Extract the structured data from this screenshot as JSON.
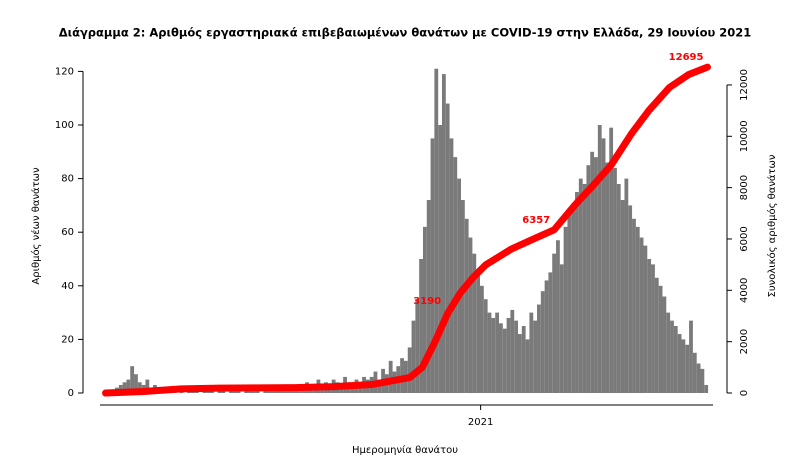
{
  "chart_data": {
    "type": "bar",
    "title": "Διάγραμμα 2: Αριθμός εργαστηριακά επιβεβαιωμένων θανάτων με COVID-19 στην Ελλάδα, 29 Ιουνίου 2021",
    "x_label": "Ημερομηνία θανάτου",
    "y_label": "Αριθμός νέων θανάτων",
    "y2_label": "Συνολικός αριθμός θανάτων",
    "xlim": [
      -2,
      477
    ],
    "xticks": [
      {
        "value": 296,
        "label": "2021"
      }
    ],
    "ylim": [
      0,
      125
    ],
    "yticks": [
      0,
      20,
      40,
      60,
      80,
      100,
      120
    ],
    "y2lim": [
      0,
      13050
    ],
    "y2ticks": [
      0,
      2000,
      4000,
      6000,
      8000,
      10000,
      12000
    ],
    "series": [
      {
        "type": "bar",
        "color": "#7a7a7a",
        "x": [
          0,
          3,
          6,
          9,
          12,
          15,
          18,
          21,
          24,
          27,
          30,
          33,
          36,
          39,
          42,
          45,
          48,
          51,
          54,
          57,
          60,
          63,
          66,
          69,
          72,
          75,
          78,
          81,
          84,
          87,
          90,
          93,
          96,
          99,
          102,
          105,
          108,
          111,
          114,
          117,
          120,
          123,
          126,
          129,
          132,
          135,
          138,
          141,
          144,
          147,
          150,
          153,
          156,
          159,
          162,
          165,
          168,
          171,
          174,
          177,
          180,
          183,
          186,
          189,
          192,
          195,
          198,
          201,
          204,
          207,
          210,
          213,
          216,
          219,
          222,
          225,
          228,
          231,
          234,
          237,
          240,
          243,
          246,
          249,
          252,
          255,
          258,
          261,
          264,
          267,
          270,
          273,
          276,
          279,
          282,
          285,
          288,
          291,
          294,
          297,
          300,
          303,
          306,
          309,
          312,
          315,
          318,
          321,
          324,
          327,
          330,
          333,
          336,
          339,
          342,
          345,
          348,
          351,
          354,
          357,
          360,
          363,
          366,
          369,
          372,
          375,
          378,
          381,
          384,
          387,
          390,
          393,
          396,
          399,
          402,
          405,
          408,
          411,
          414,
          417,
          420,
          423,
          426,
          429,
          432,
          435,
          438,
          441,
          444,
          447,
          450,
          453,
          456,
          459,
          462,
          465,
          468,
          471,
          474
        ],
        "values": [
          0,
          1,
          1,
          2,
          3,
          4,
          5,
          10,
          7,
          4,
          3,
          5,
          2,
          3,
          2,
          1,
          2,
          1,
          1,
          0,
          1,
          0,
          1,
          2,
          1,
          0,
          1,
          2,
          1,
          0,
          1,
          1,
          0,
          2,
          1,
          1,
          0,
          1,
          2,
          1,
          1,
          0,
          1,
          2,
          1,
          1,
          2,
          1,
          1,
          2,
          2,
          3,
          2,
          4,
          3,
          2,
          5,
          3,
          4,
          2,
          5,
          4,
          3,
          6,
          4,
          3,
          5,
          4,
          6,
          5,
          6,
          8,
          5,
          9,
          7,
          12,
          8,
          10,
          13,
          12,
          17,
          27,
          35,
          50,
          62,
          72,
          95,
          121,
          100,
          119,
          108,
          95,
          88,
          80,
          72,
          65,
          58,
          52,
          45,
          40,
          35,
          30,
          28,
          30,
          26,
          24,
          28,
          31,
          27,
          22,
          25,
          20,
          30,
          27,
          33,
          38,
          42,
          45,
          52,
          57,
          48,
          62,
          67,
          70,
          75,
          80,
          78,
          85,
          90,
          88,
          100,
          95,
          86,
          99,
          84,
          78,
          72,
          80,
          70,
          65,
          62,
          58,
          55,
          50,
          48,
          43,
          40,
          36,
          30,
          27,
          25,
          22,
          20,
          18,
          27,
          15,
          11,
          9,
          3
        ]
      },
      {
        "type": "line",
        "axis": "y2",
        "color": "#ff0000",
        "x": [
          0,
          30,
          60,
          90,
          120,
          150,
          180,
          210,
          240,
          250,
          260,
          270,
          280,
          290,
          300,
          320,
          340,
          354,
          370,
          385,
          399,
          415,
          429,
          445,
          460,
          475
        ],
        "values": [
          0,
          60,
          160,
          190,
          200,
          210,
          250,
          330,
          600,
          1000,
          2000,
          3100,
          3900,
          4500,
          4990,
          5600,
          6050,
          6357,
          7300,
          8100,
          8880,
          10100,
          11020,
          11900,
          12400,
          12695
        ]
      }
    ],
    "annotations": [
      {
        "text": "3190",
        "x": 268,
        "value": 3190
      },
      {
        "text": "6357",
        "x": 354,
        "value": 6357
      },
      {
        "text": "12695",
        "x": 475,
        "value": 12695
      }
    ]
  }
}
